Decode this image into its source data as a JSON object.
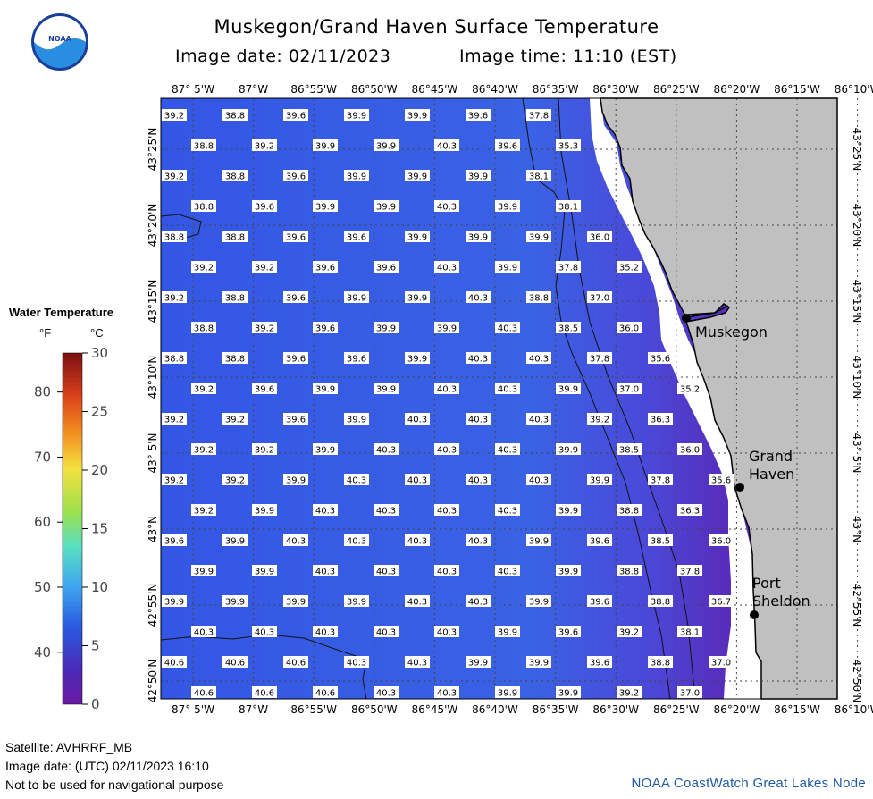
{
  "header": {
    "title": "Muskegon/Grand Haven Surface Temperature",
    "image_date": "Image date: 02/11/2023",
    "image_time": "Image time: 11:10 (EST)"
  },
  "logo_text": "NOAA",
  "legend": {
    "title": "Water Temperature",
    "unit_f": "°F",
    "unit_c": "°C",
    "f_ticks": [
      "80",
      "70",
      "60",
      "50",
      "40"
    ],
    "c_ticks": [
      "30",
      "25",
      "20",
      "15",
      "10",
      "5",
      "0"
    ]
  },
  "axes": {
    "lon_labels": [
      "87° 5'W",
      "87°W",
      "86°55'W",
      "86°50'W",
      "86°45'W",
      "86°40'W",
      "86°35'W",
      "86°30'W",
      "86°25'W",
      "86°20'W",
      "86°15'W",
      "86°10'W"
    ],
    "lat_labels": [
      "43°25'N",
      "43°20'N",
      "43°15'N",
      "43°10'N",
      "43° 5'N",
      "43°N",
      "42°55'N",
      "42°50'N"
    ]
  },
  "places": [
    "Muskegon",
    "Grand Haven",
    "Port Sheldon"
  ],
  "temperature_rows": [
    [
      "39.2",
      "38.8",
      "39.6",
      "39.9",
      "39.9",
      "39.6",
      "37.8"
    ],
    [
      "38.8",
      "39.2",
      "39.9",
      "39.9",
      "40.3",
      "39.6",
      "35.3"
    ],
    [
      "39.2",
      "38.8",
      "39.6",
      "39.9",
      "39.9",
      "39.9",
      "38.1"
    ],
    [
      "38.8",
      "39.6",
      "39.9",
      "39.9",
      "40.3",
      "39.9",
      "38.1"
    ],
    [
      "38.8",
      "38.8",
      "39.6",
      "39.6",
      "39.9",
      "39.9",
      "39.9",
      "36.0"
    ],
    [
      "39.2",
      "39.2",
      "39.6",
      "39.6",
      "40.3",
      "39.9",
      "37.8",
      "35.2"
    ],
    [
      "39.2",
      "38.8",
      "39.6",
      "39.9",
      "39.9",
      "40.3",
      "38.8",
      "37.0"
    ],
    [
      "38.8",
      "39.2",
      "39.6",
      "39.9",
      "39.9",
      "40.3",
      "38.5",
      "36.0"
    ],
    [
      "38.8",
      "38.8",
      "39.6",
      "39.6",
      "39.9",
      "40.3",
      "40.3",
      "37.8",
      "35.6"
    ],
    [
      "39.2",
      "39.6",
      "39.9",
      "39.9",
      "40.3",
      "40.3",
      "39.9",
      "37.0",
      "35.2"
    ],
    [
      "39.2",
      "39.2",
      "39.6",
      "39.9",
      "40.3",
      "40.3",
      "40.3",
      "39.2",
      "36.3"
    ],
    [
      "39.2",
      "39.2",
      "39.9",
      "40.3",
      "40.3",
      "40.3",
      "39.9",
      "38.5",
      "36.0"
    ],
    [
      "39.2",
      "39.2",
      "39.9",
      "40.3",
      "40.3",
      "40.3",
      "40.3",
      "39.9",
      "37.8",
      "35.6"
    ],
    [
      "39.2",
      "39.9",
      "40.3",
      "40.3",
      "40.3",
      "40.3",
      "39.9",
      "38.8",
      "36.3"
    ],
    [
      "39.6",
      "39.9",
      "40.3",
      "40.3",
      "40.3",
      "40.3",
      "39.9",
      "39.6",
      "38.5",
      "36.0"
    ],
    [
      "39.9",
      "39.9",
      "40.3",
      "40.3",
      "40.3",
      "40.3",
      "39.9",
      "38.8",
      "37.8"
    ],
    [
      "39.9",
      "39.9",
      "39.9",
      "39.9",
      "40.3",
      "40.3",
      "39.9",
      "39.6",
      "38.8",
      "36.7"
    ],
    [
      "40.3",
      "40.3",
      "40.3",
      "40.3",
      "40.3",
      "39.9",
      "39.6",
      "39.2",
      "38.1"
    ],
    [
      "40.6",
      "40.6",
      "40.6",
      "40.3",
      "40.3",
      "39.9",
      "39.9",
      "39.6",
      "38.8",
      "37.0"
    ],
    [
      "40.6",
      "40.6",
      "40.6",
      "40.3",
      "40.3",
      "39.9",
      "39.9",
      "39.2",
      "37.0"
    ]
  ],
  "footer": {
    "satellite": "Satellite: AVHRRF_MB",
    "utc_date": "Image date: (UTC) 02/11/2023   16:10",
    "warning": "Not to be used for navigational purpose",
    "credit": "NOAA CoastWatch Great Lakes Node"
  },
  "colors": {
    "water_blue": "#3358e0",
    "water_purple": "#5a22b0",
    "land": "#c0c0c0",
    "ice_white": "#ffffff"
  }
}
